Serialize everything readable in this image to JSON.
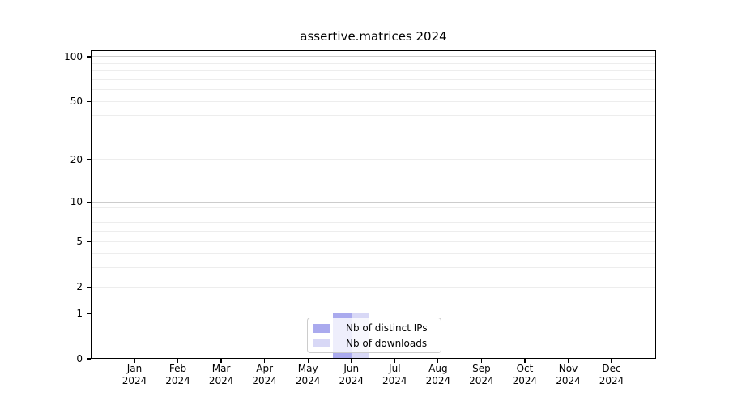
{
  "colors": {
    "background": "#ffffff",
    "text": "#000000",
    "spine": "#000000",
    "grid_major": "#cccccc",
    "grid_minor": "#ededed",
    "bar_distinct_ips": "#aaaaee",
    "bar_downloads": "#d8d8f6",
    "legend_border": "#cccccc",
    "legend_background": "rgba(255,255,255,0.8)"
  },
  "chart_data": {
    "type": "bar",
    "title": "assertive.matrices 2024",
    "xlabel": "",
    "ylabel": "",
    "months": [
      "Jan",
      "Feb",
      "Mar",
      "Apr",
      "May",
      "Jun",
      "Jul",
      "Aug",
      "Sep",
      "Oct",
      "Nov",
      "Dec"
    ],
    "year": "2024",
    "series": [
      {
        "name": "Nb of distinct IPs",
        "color": "#aaaaee",
        "values": [
          0,
          0,
          0,
          0,
          0,
          1,
          0,
          0,
          0,
          0,
          0,
          0
        ]
      },
      {
        "name": "Nb of downloads",
        "color": "#d8d8f6",
        "values": [
          0,
          0,
          0,
          0,
          0,
          1,
          0,
          0,
          0,
          0,
          0,
          0
        ]
      }
    ],
    "yscale": "log1p",
    "ylim": [
      0,
      110.5
    ],
    "y_ticks": [
      0,
      1,
      2,
      5,
      10,
      20,
      50,
      100
    ],
    "y_gridlines_major": [
      1,
      10,
      100
    ],
    "y_gridlines_minor": [
      2,
      3,
      4,
      5,
      6,
      7,
      8,
      9,
      20,
      30,
      40,
      50,
      60,
      70,
      80,
      90
    ],
    "grid": true,
    "legend_position": "lower center"
  }
}
